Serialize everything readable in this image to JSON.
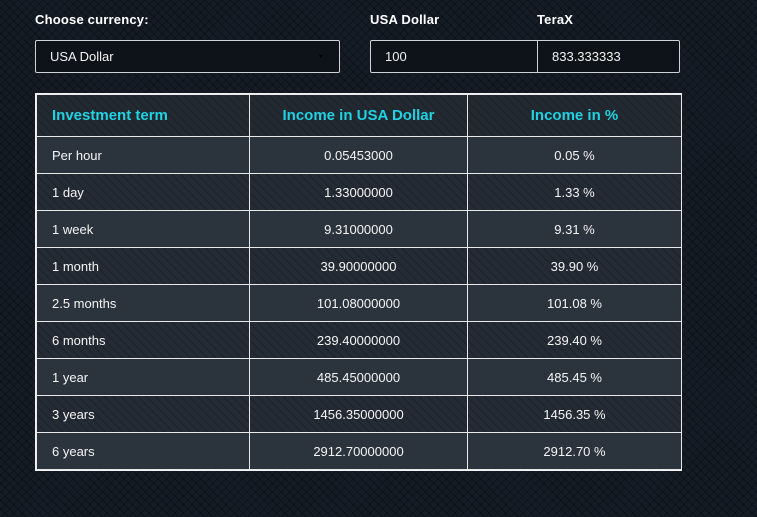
{
  "currency_panel": {
    "choose_label": "Choose currency:",
    "selected_currency": "USA Dollar",
    "usd_label": "USA Dollar",
    "terax_label": "TeraX",
    "usd_value": "100",
    "terax_value": "833.333333"
  },
  "icons": {
    "dropdown_arrow": "▼"
  },
  "colors": {
    "accent_cyan": "#20d2e2",
    "page_background": "#161c26",
    "row_light": "#2b333d",
    "row_dark": "#242b34",
    "input_background": "#0e1319",
    "border_light": "#e9e9e9"
  },
  "table": {
    "headers": [
      "Investment term",
      "Income in USA Dollar",
      "Income in %"
    ],
    "rows": [
      {
        "term": "Per hour",
        "income_usd": "0.05453000",
        "income_pct": "0.05 %"
      },
      {
        "term": "1 day",
        "income_usd": "1.33000000",
        "income_pct": "1.33 %"
      },
      {
        "term": "1 week",
        "income_usd": "9.31000000",
        "income_pct": "9.31 %"
      },
      {
        "term": "1 month",
        "income_usd": "39.90000000",
        "income_pct": "39.90 %"
      },
      {
        "term": "2.5 months",
        "income_usd": "101.08000000",
        "income_pct": "101.08 %"
      },
      {
        "term": "6 months",
        "income_usd": "239.40000000",
        "income_pct": "239.40 %"
      },
      {
        "term": "1 year",
        "income_usd": "485.45000000",
        "income_pct": "485.45 %"
      },
      {
        "term": "3 years",
        "income_usd": "1456.35000000",
        "income_pct": "1456.35 %"
      },
      {
        "term": "6 years",
        "income_usd": "2912.70000000",
        "income_pct": "2912.70 %"
      }
    ]
  }
}
